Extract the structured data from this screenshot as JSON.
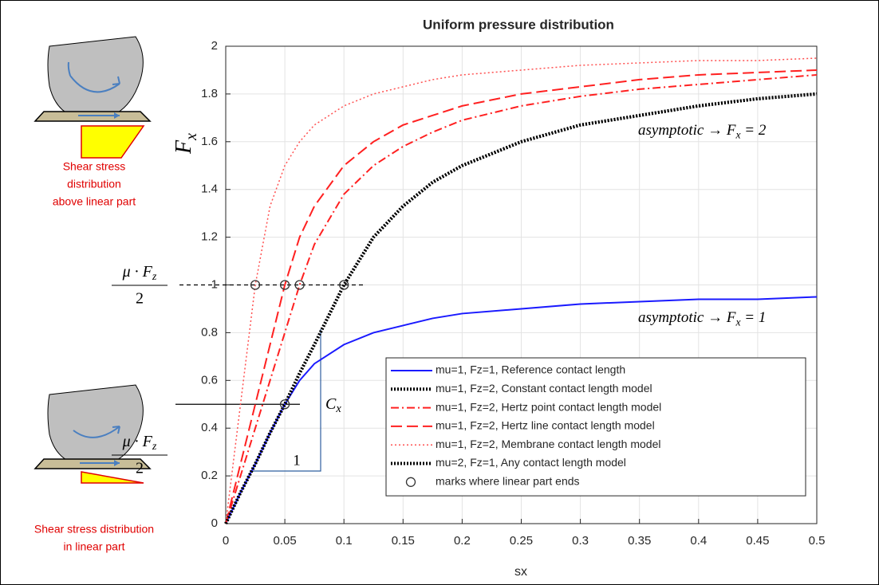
{
  "chart_data": {
    "type": "line",
    "title": "Uniform pressure distribution",
    "xlabel": "sx",
    "ylabel": {
      "text": "F",
      "subscript": "x"
    },
    "x": [
      0,
      0.0125,
      0.025,
      0.0375,
      0.05,
      0.0625,
      0.075,
      0.1,
      0.125,
      0.15,
      0.175,
      0.2,
      0.25,
      0.3,
      0.35,
      0.4,
      0.45,
      0.5
    ],
    "series": [
      {
        "name": "mu=1, Fz=1, Reference contact length",
        "color": "#1a1aff",
        "dash": "none",
        "width": 2,
        "values": [
          0,
          0.13,
          0.25,
          0.38,
          0.5,
          0.6,
          0.67,
          0.75,
          0.8,
          0.83,
          0.86,
          0.88,
          0.9,
          0.92,
          0.93,
          0.94,
          0.94,
          0.95
        ]
      },
      {
        "name": "mu=1, Fz=2, Constant contact length model",
        "color": "#000000",
        "dash": "2,2",
        "width": 4,
        "values": [
          0,
          0.13,
          0.25,
          0.38,
          0.5,
          0.63,
          0.75,
          1,
          1.2,
          1.33,
          1.43,
          1.5,
          1.6,
          1.67,
          1.71,
          1.75,
          1.78,
          1.8
        ]
      },
      {
        "name": "mu=1, Fz=2, Hertz point contact length model",
        "color": "#ff2020",
        "dash": "10,4,2,4",
        "width": 2,
        "values": [
          0,
          0.2,
          0.4,
          0.6,
          0.8,
          1,
          1.17,
          1.38,
          1.5,
          1.58,
          1.64,
          1.69,
          1.75,
          1.79,
          1.82,
          1.84,
          1.86,
          1.88
        ]
      },
      {
        "name": "mu=1, Fz=2, Hertz line contact length model",
        "color": "#ff2020",
        "dash": "14,6",
        "width": 2,
        "values": [
          0,
          0.25,
          0.5,
          0.75,
          1,
          1.2,
          1.33,
          1.5,
          1.6,
          1.67,
          1.71,
          1.75,
          1.8,
          1.83,
          1.86,
          1.88,
          1.89,
          1.9
        ]
      },
      {
        "name": "mu=1, Fz=2, Membrane contact length model",
        "color": "#ff5050",
        "dash": "2,3",
        "width": 1.5,
        "values": [
          0,
          0.5,
          1,
          1.33,
          1.5,
          1.6,
          1.67,
          1.75,
          1.8,
          1.83,
          1.86,
          1.88,
          1.9,
          1.92,
          1.93,
          1.94,
          1.94,
          1.95
        ]
      },
      {
        "name": "mu=2, Fz=1, Any contact length model",
        "color": "#000000",
        "dash": "2,2",
        "width": 4,
        "values": [
          0,
          0.13,
          0.25,
          0.38,
          0.5,
          0.63,
          0.75,
          1,
          1.2,
          1.33,
          1.43,
          1.5,
          1.6,
          1.67,
          1.71,
          1.75,
          1.78,
          1.8
        ]
      },
      {
        "name": "marks where linear part ends",
        "color": "#333333",
        "marker": "circle",
        "x": [
          0.025,
          0.05,
          0.0625,
          0.1,
          0.05
        ],
        "values": [
          1,
          1,
          1,
          1,
          0.5
        ]
      }
    ],
    "xlim": [
      0,
      0.5
    ],
    "ylim": [
      0,
      2
    ],
    "xticks": [
      0,
      0.05,
      0.1,
      0.15,
      0.2,
      0.25,
      0.3,
      0.35,
      0.4,
      0.45,
      0.5
    ],
    "yticks": [
      0,
      0.2,
      0.4,
      0.6,
      0.8,
      1,
      1.2,
      1.4,
      1.6,
      1.8,
      2
    ],
    "grid": true,
    "legend": "lower right",
    "reference_lines": [
      {
        "value": 1,
        "dash": "5,4"
      },
      {
        "value": 0.5,
        "dash": "none"
      }
    ],
    "annotations": {
      "asymptote_high": {
        "text": "asymptotic → F",
        "subscript": "x",
        "suffix": " = 2"
      },
      "asymptote_low": {
        "text": "asymptotic → F",
        "subscript": "x",
        "suffix": " = 1"
      },
      "fraction_high": {
        "numerator": "μ · F",
        "subscript": "z",
        "denominator": "2"
      },
      "fraction_low": {
        "numerator": "μ · F",
        "subscript": "z",
        "denominator": "2"
      },
      "slope_run": "1",
      "slope_rise": {
        "text": "C",
        "subscript": "x"
      }
    },
    "captions": {
      "top": [
        "Shear stress",
        "distribution",
        "above linear part"
      ],
      "bottom": [
        "Shear stress distribution",
        "in linear part"
      ]
    }
  }
}
